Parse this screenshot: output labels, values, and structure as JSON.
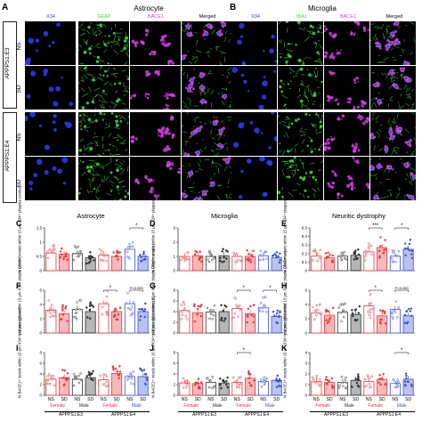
{
  "grid": {
    "left": {
      "letter": "A",
      "title": "Astrocyte",
      "channels": [
        "X34",
        "GFAP",
        "BACE1",
        "Merged"
      ]
    },
    "right": {
      "letter": "B",
      "title": "Microglia",
      "channels": [
        "X34",
        "IBA1",
        "BACE1",
        "Merged"
      ]
    },
    "groups": [
      {
        "label": "APPPS1:E3",
        "rows": [
          "NS",
          "SD"
        ]
      },
      {
        "label": "APPPS1:E4",
        "rows": [
          "NS",
          "SD"
        ]
      }
    ],
    "channel_colors": {
      "X34": "#2b3cff",
      "GFAP": "#3fd23f",
      "IBA1": "#3fd23f",
      "BACE1": "#d23ce6"
    }
  },
  "charts_header": {
    "col1": {
      "title": "Astrocyte"
    },
    "col2": {
      "title": "Microglia"
    },
    "col3": {
      "title": "Neuritic dystrophy"
    }
  },
  "x_groups": {
    "conditions": [
      "NS",
      "SD",
      "NS",
      "SD",
      "NS",
      "SD",
      "NS",
      "SD"
    ],
    "sexes": [
      "Female",
      "Male",
      "Female",
      "Male"
    ],
    "genotypes": [
      "APPPS1:E3",
      "APPPS1:E4"
    ]
  },
  "colors": {
    "e3_female": "#e8343a",
    "e3_male": "#2d2d2d",
    "e4_female": "#e8343a",
    "e4_male": "#3a4fd6"
  },
  "chart_data": [
    {
      "type": "bar",
      "panel": "C",
      "ylabel": "% GFAP+ voxels within 15 μm X34+ plaques (cortex)",
      "ylim": [
        0,
        1.5
      ],
      "yticks": [
        0,
        0.5,
        1.0,
        1.5
      ],
      "values": [
        0.62,
        0.58,
        0.6,
        0.45,
        0.55,
        0.5,
        0.75,
        0.5
      ],
      "annotations": [
        {
          "between": [
            6,
            7
          ],
          "text": "*"
        }
      ]
    },
    {
      "type": "bar",
      "panel": "D",
      "ylabel": "% GFAP+ voxels within 15 μm X34+ plaques (hippocampus)",
      "ylim": [
        0,
        3
      ],
      "yticks": [
        0,
        1,
        2,
        3
      ],
      "values": [
        1.0,
        1.05,
        1.0,
        1.05,
        1.0,
        1.0,
        1.05,
        0.9
      ],
      "annotations": []
    },
    {
      "type": "bar",
      "panel": "E",
      "ylabel": "% GFAP+ voxels within 15 μm X34+ plaques (thalamus)",
      "ylim": [
        0,
        0.5
      ],
      "yticks": [
        0,
        0.1,
        0.2,
        0.3,
        0.4,
        0.5
      ],
      "values": [
        0.17,
        0.15,
        0.17,
        0.18,
        0.22,
        0.27,
        0.17,
        0.25
      ],
      "annotations": [
        {
          "between": [
            4,
            5
          ],
          "text": "***"
        },
        {
          "between": [
            6,
            7
          ],
          "text": "*"
        }
      ]
    },
    {
      "type": "bar",
      "panel": "F",
      "ylabel": "# of microglia within 15 μm X34+ plaque (cortex)",
      "ylim": [
        0,
        6
      ],
      "yticks": [
        0,
        2,
        4,
        6
      ],
      "values": [
        3.2,
        2.7,
        3.3,
        3.0,
        4.1,
        3.0,
        4.1,
        3.0
      ],
      "annotations": [
        {
          "between": [
            4,
            5
          ],
          "text": "*"
        },
        {
          "between": [
            6,
            7
          ],
          "text": "P=0.059"
        }
      ]
    },
    {
      "type": "bar",
      "panel": "G",
      "ylabel": "# of microglia within 15 μm X34+ plaque (hippocampus)",
      "ylim": [
        0,
        8
      ],
      "yticks": [
        0,
        2,
        4,
        6,
        8
      ],
      "values": [
        4.2,
        3.8,
        3.9,
        4.0,
        4.6,
        3.6,
        4.7,
        3.1
      ],
      "annotations": [
        {
          "between": [
            4,
            5
          ],
          "text": "*"
        },
        {
          "between": [
            6,
            7
          ],
          "text": "*"
        }
      ]
    },
    {
      "type": "bar",
      "panel": "H",
      "ylabel": "# of microglia within 15 μm X34+ plaque (thalamus)",
      "ylim": [
        0,
        6
      ],
      "yticks": [
        0,
        2,
        4,
        6
      ],
      "values": [
        2.8,
        2.5,
        2.9,
        2.6,
        3.8,
        2.4,
        3.3,
        2.4
      ],
      "annotations": [
        {
          "between": [
            4,
            5
          ],
          "text": "*"
        },
        {
          "between": [
            6,
            7
          ],
          "text": "P=0.050"
        }
      ]
    },
    {
      "type": "bar",
      "panel": "I",
      "ylabel": "% BACE1+ voxels within 15 μm X34+ plaques (cortex)",
      "ylim": [
        0,
        8
      ],
      "yticks": [
        0,
        2,
        4,
        6,
        8
      ],
      "values": [
        3.0,
        3.3,
        3.0,
        3.3,
        2.9,
        4.1,
        3.5,
        3.5
      ],
      "annotations": []
    },
    {
      "type": "bar",
      "panel": "J",
      "ylabel": "% BACE1+ voxels within 15 μm X34+ plaques (hippocampus)",
      "ylim": [
        0,
        8
      ],
      "yticks": [
        0,
        2,
        4,
        6,
        8
      ],
      "values": [
        2.3,
        2.2,
        2.4,
        2.3,
        2.4,
        3.2,
        2.6,
        2.8
      ],
      "annotations": [
        {
          "between": [
            4,
            5
          ],
          "text": "*"
        }
      ]
    },
    {
      "type": "bar",
      "panel": "K",
      "ylabel": "% BACE1+ voxels within 15 μm X34+ plaques (thalamus)",
      "ylim": [
        0,
        4
      ],
      "yticks": [
        0,
        1,
        2,
        3,
        4
      ],
      "values": [
        1.3,
        1.2,
        1.2,
        1.4,
        1.3,
        1.5,
        1.1,
        1.5
      ],
      "annotations": [
        {
          "between": [
            6,
            7
          ],
          "text": "*"
        }
      ]
    }
  ]
}
